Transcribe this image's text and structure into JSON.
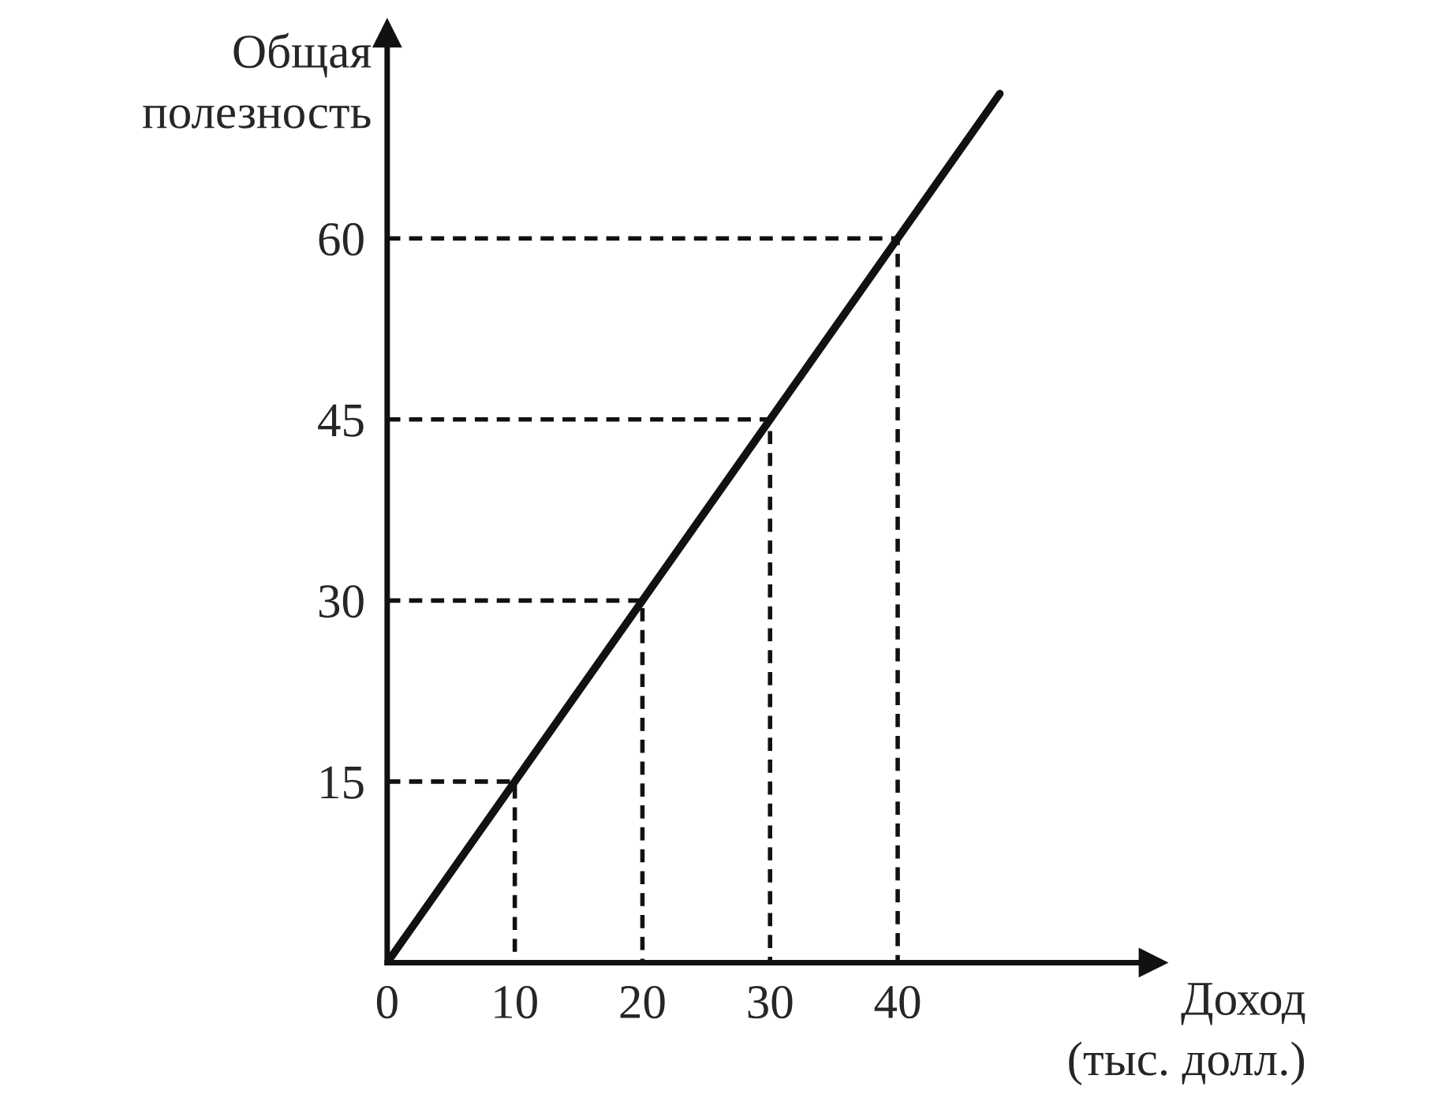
{
  "chart_data": {
    "type": "line",
    "xlabel": "Доход\n(тыс. долл.)",
    "ylabel": "Общая\nполезность",
    "xlim": [
      0,
      60
    ],
    "ylim": [
      0,
      77
    ],
    "xticks": [
      0,
      10,
      20,
      30,
      40
    ],
    "yticks": [
      15,
      30,
      45,
      60
    ],
    "grid": false,
    "marker": "none",
    "series": [
      {
        "color": "#111111",
        "line_style": "solid",
        "x": [
          0,
          10,
          20,
          30,
          40,
          48
        ],
        "values": [
          0,
          15,
          30,
          45,
          60,
          72
        ]
      },
      {
        "color": "#111111",
        "line_style": "dashed",
        "x": [
          0,
          10,
          10
        ],
        "values": [
          15,
          15,
          0
        ]
      },
      {
        "color": "#111111",
        "line_style": "dashed",
        "x": [
          0,
          20,
          20
        ],
        "values": [
          30,
          30,
          0
        ]
      },
      {
        "color": "#111111",
        "line_style": "dashed",
        "x": [
          0,
          30,
          30
        ],
        "values": [
          45,
          45,
          0
        ]
      },
      {
        "color": "#111111",
        "line_style": "dashed",
        "x": [
          0,
          40,
          40
        ],
        "values": [
          60,
          60,
          0
        ]
      }
    ]
  }
}
